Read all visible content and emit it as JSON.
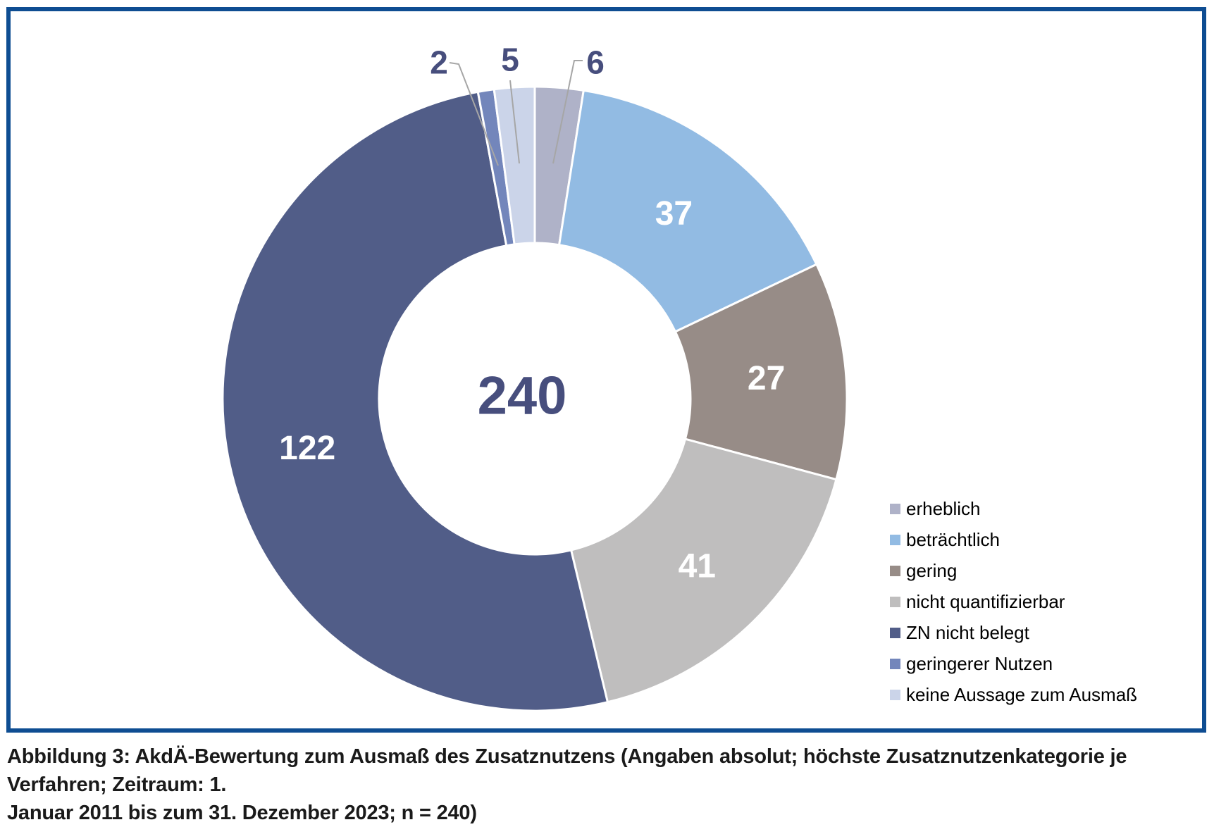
{
  "figure": {
    "caption_lines": [
      "Abbildung 3: AkdÄ-Bewertung zum Ausmaß des Zusatznutzens (Angaben absolut; höchste Zusatznutzenkategorie je Verfahren; Zeitraum: 1.",
      "Januar 2011 bis zum 31. Dezember 2023; n = 240)"
    ],
    "border_color": "#0E4D92"
  },
  "chart_data": {
    "type": "pie",
    "subtype": "donut",
    "title": "",
    "total": 240,
    "center_total_label": "240",
    "start_angle_deg": 0,
    "direction": "clockwise",
    "legend_position": "right",
    "series": [
      {
        "label": "erheblich",
        "value": 6,
        "color": "#AFB2C8",
        "value_label_style": "callout"
      },
      {
        "label": "beträchtlich",
        "value": 37,
        "color": "#92BBE3",
        "value_label_style": "inside"
      },
      {
        "label": "gering",
        "value": 27,
        "color": "#978C87",
        "value_label_style": "inside"
      },
      {
        "label": "nicht quantifizierbar",
        "value": 41,
        "color": "#BFBEBE",
        "value_label_style": "inside"
      },
      {
        "label": "ZN nicht belegt",
        "value": 122,
        "color": "#515D88",
        "value_label_style": "inside"
      },
      {
        "label": "geringerer Nutzen",
        "value": 2,
        "color": "#7386BB",
        "value_label_style": "callout"
      },
      {
        "label": "keine Aussage zum Ausmaß",
        "value": 5,
        "color": "#CBD4E9",
        "value_label_style": "callout"
      }
    ],
    "colors": {
      "center_text": "#474E7D",
      "callout_text": "#474E7D",
      "inside_text": "#FFFFFF",
      "leader_line": "#A6A6A6",
      "slice_border": "#FFFFFF"
    }
  }
}
